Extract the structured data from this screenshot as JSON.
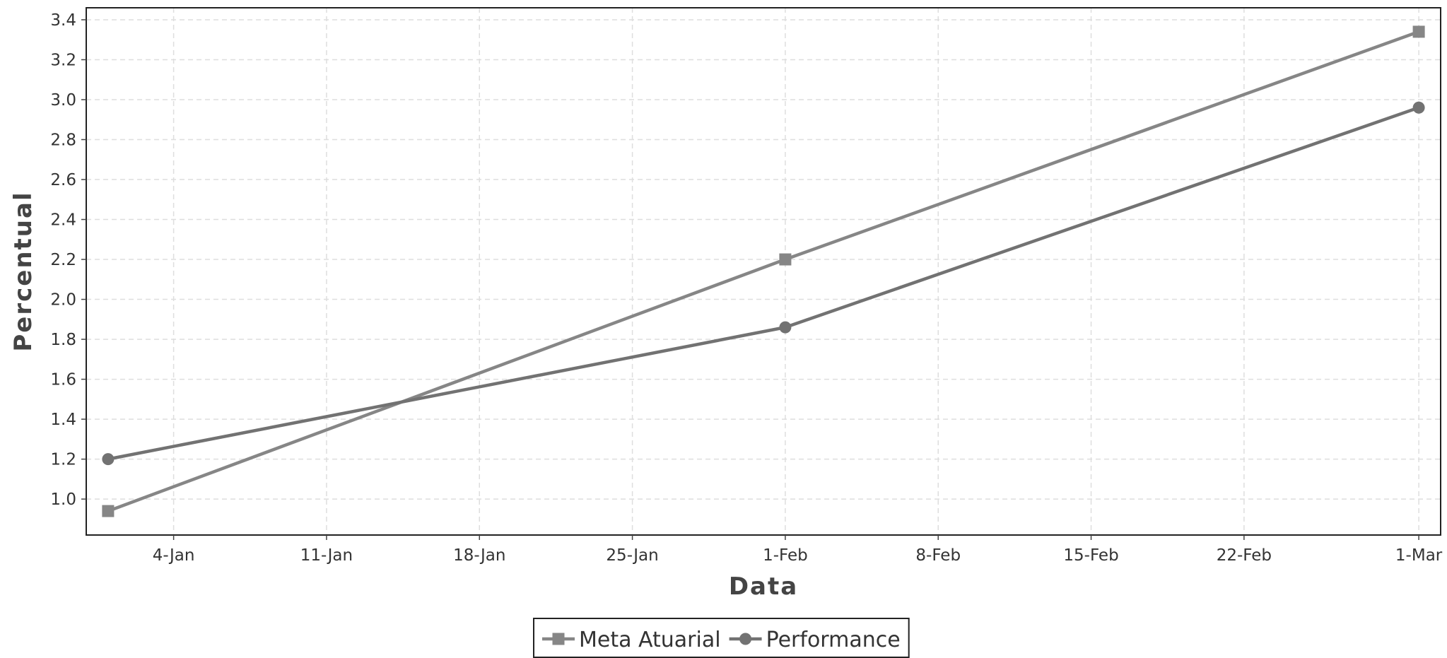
{
  "chart_data": {
    "type": "line",
    "title": "",
    "xlabel": "Data",
    "ylabel": "Percentual",
    "x_axis_type": "date",
    "x_ticks": [
      "4-Jan",
      "11-Jan",
      "18-Jan",
      "25-Jan",
      "1-Feb",
      "8-Feb",
      "15-Feb",
      "22-Feb",
      "1-Mar"
    ],
    "x_tick_dates": [
      "2024-01-04",
      "2024-01-11",
      "2024-01-18",
      "2024-01-25",
      "2024-02-01",
      "2024-02-08",
      "2024-02-15",
      "2024-02-22",
      "2024-03-01"
    ],
    "x_range": [
      "2023-12-31",
      "2024-03-02"
    ],
    "ylim": [
      0.82,
      3.46
    ],
    "y_ticks": [
      "1.0",
      "1.2",
      "1.4",
      "1.6",
      "1.8",
      "2.0",
      "2.2",
      "2.4",
      "2.6",
      "2.8",
      "3.0",
      "3.2",
      "3.4"
    ],
    "grid": true,
    "legend_position": "bottom-center",
    "series": [
      {
        "name": "Meta Atuarial",
        "marker": "square",
        "color": "#868686",
        "points": [
          {
            "x": "2024-01-01",
            "y": 0.94
          },
          {
            "x": "2024-02-01",
            "y": 2.2
          },
          {
            "x": "2024-03-01",
            "y": 3.34
          }
        ]
      },
      {
        "name": "Performance",
        "marker": "circle",
        "color": "#727272",
        "points": [
          {
            "x": "2024-01-01",
            "y": 1.2
          },
          {
            "x": "2024-02-01",
            "y": 1.86
          },
          {
            "x": "2024-03-01",
            "y": 2.96
          }
        ]
      }
    ]
  }
}
